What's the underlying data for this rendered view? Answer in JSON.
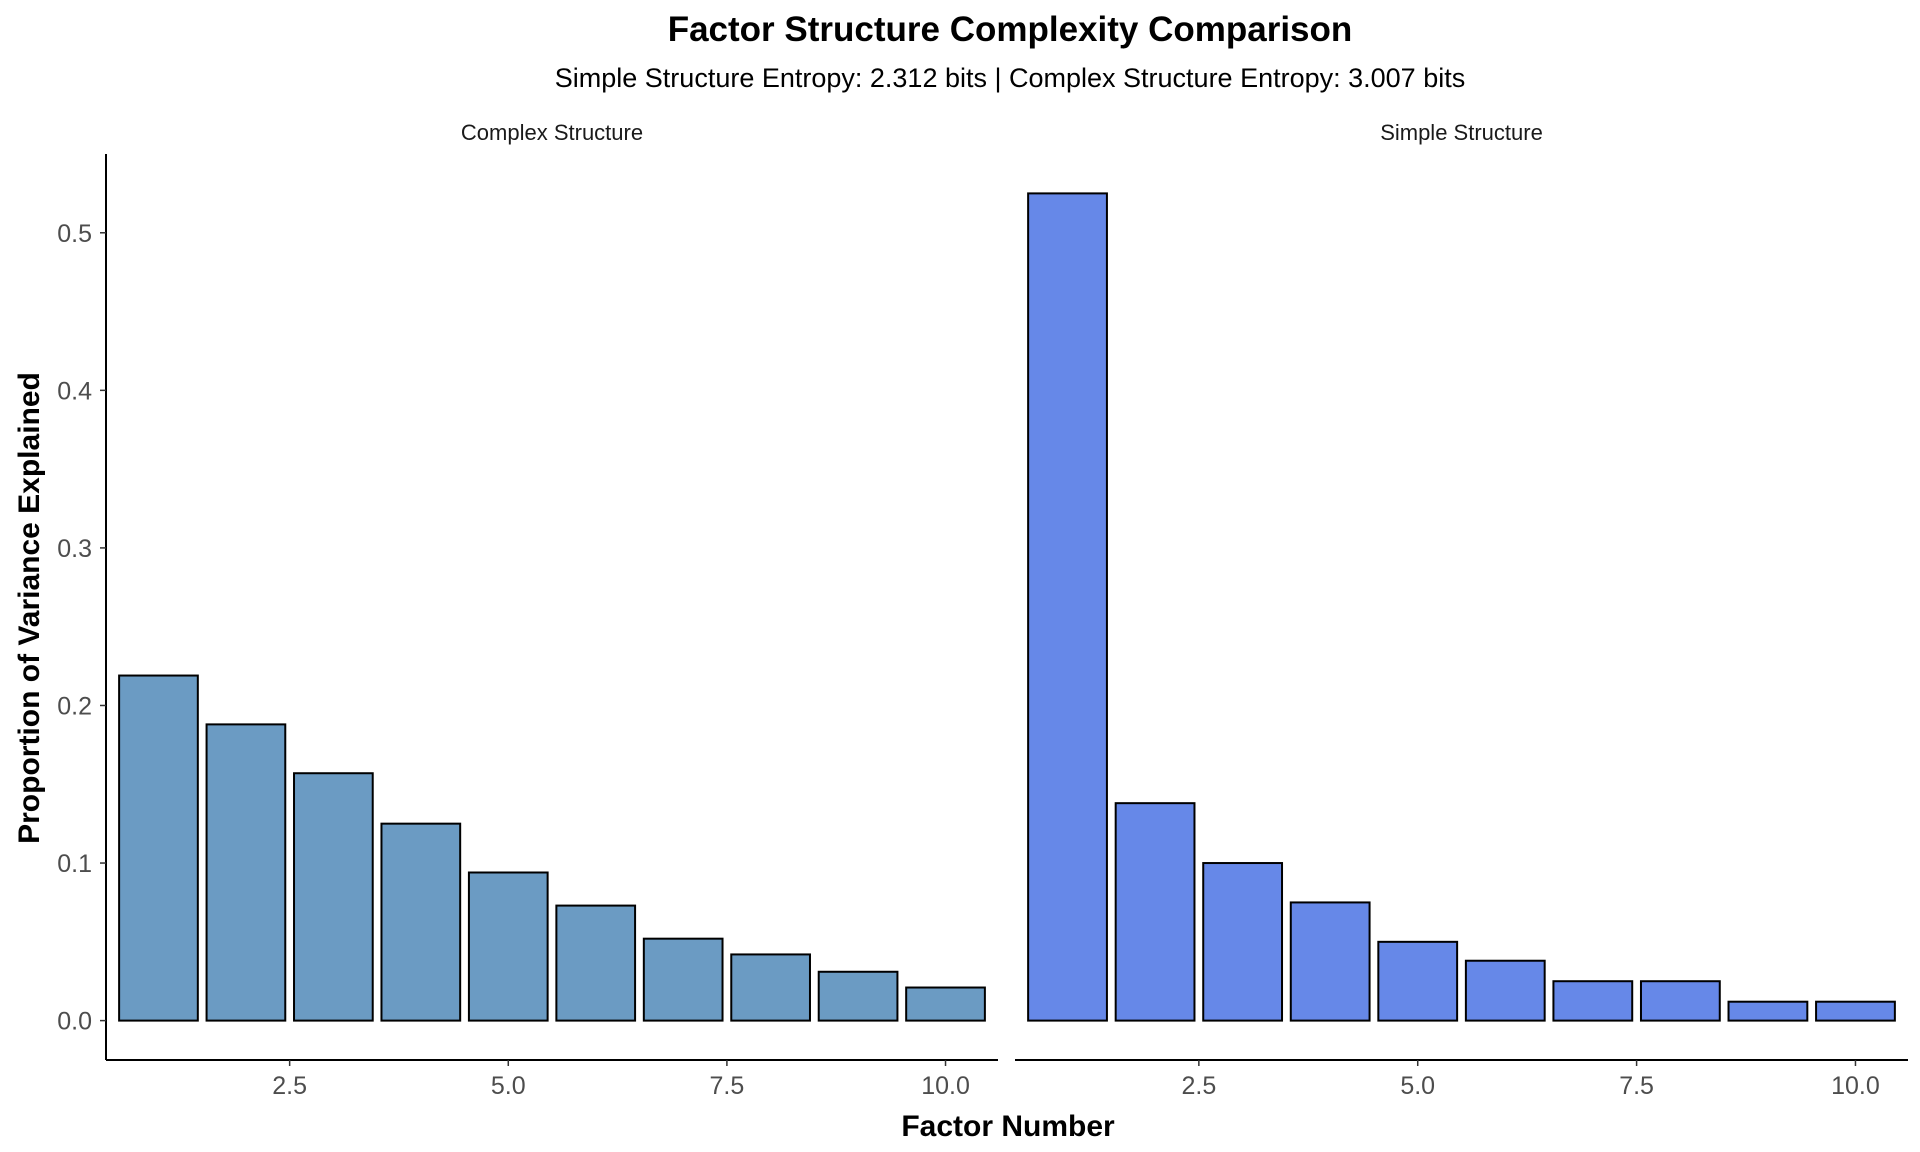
{
  "chart_data": {
    "type": "bar",
    "title": "Factor Structure Complexity Comparison",
    "subtitle": "Simple Structure Entropy: 2.312 bits | Complex Structure Entropy: 3.007 bits",
    "xlabel": "Factor Number",
    "ylabel": "Proportion of Variance Explained",
    "xlim": [
      0.4,
      10.6
    ],
    "ylim": [
      -0.025,
      0.55
    ],
    "x_ticks": [
      2.5,
      5.0,
      7.5,
      10.0
    ],
    "x_tick_labels": [
      "2.5",
      "5.0",
      "7.5",
      "10.0"
    ],
    "y_ticks": [
      0.0,
      0.1,
      0.2,
      0.3,
      0.4,
      0.5
    ],
    "y_tick_labels": [
      "0.0",
      "0.1",
      "0.2",
      "0.3",
      "0.4",
      "0.5"
    ],
    "grid": false,
    "legend": "none",
    "panels": [
      {
        "name": "Complex Structure",
        "color": "#6b9bc3",
        "x": [
          1,
          2,
          3,
          4,
          5,
          6,
          7,
          8,
          9,
          10
        ],
        "values": [
          0.219,
          0.188,
          0.157,
          0.125,
          0.094,
          0.073,
          0.052,
          0.042,
          0.031,
          0.021
        ]
      },
      {
        "name": "Simple Structure",
        "color": "#6688e8",
        "x": [
          1,
          2,
          3,
          4,
          5,
          6,
          7,
          8,
          9,
          10
        ],
        "values": [
          0.525,
          0.138,
          0.1,
          0.075,
          0.05,
          0.038,
          0.025,
          0.025,
          0.012,
          0.012
        ]
      }
    ]
  }
}
